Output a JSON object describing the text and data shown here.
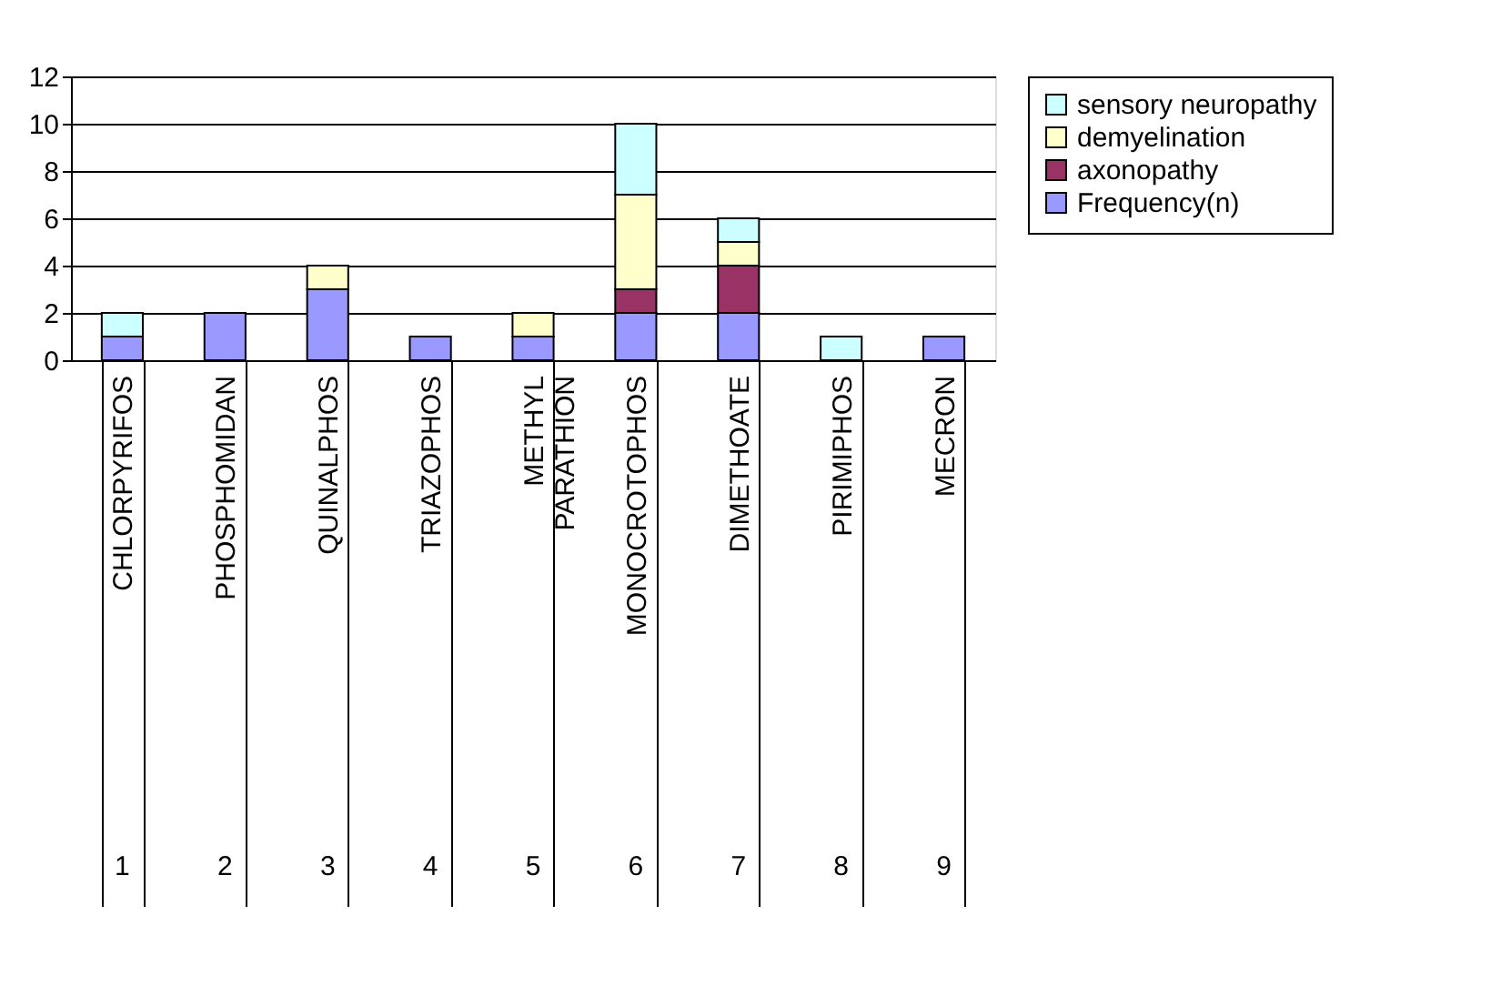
{
  "chart_data": {
    "type": "bar",
    "stacked": true,
    "categories": [
      "CHLORPYRIFOS",
      "PHOSPHOMIDAN",
      "QUINALPHOS",
      "TRIAZOPHOS",
      "METHYL PARATHION",
      "MONOCROTOPHOS",
      "DIMETHOATE",
      "PIRIMIPHOS",
      "MECRON"
    ],
    "series": [
      {
        "name": "Frequency(n)",
        "color": "#9999ff",
        "values": [
          1,
          2,
          3,
          1,
          1,
          2,
          2,
          null,
          1
        ]
      },
      {
        "name": "axonopathy",
        "color": "#993366",
        "values": [
          null,
          null,
          null,
          null,
          null,
          1,
          2,
          null,
          null
        ]
      },
      {
        "name": "demyelination",
        "color": "#ffffcc",
        "values": [
          null,
          null,
          1,
          null,
          1,
          4,
          1,
          null,
          null
        ]
      },
      {
        "name": "sensory neuropathy",
        "color": "#ccffff",
        "values": [
          1,
          null,
          null,
          null,
          null,
          3,
          1,
          1,
          null
        ]
      }
    ],
    "annotations": [
      "1",
      "2",
      "3",
      "4",
      "5",
      "6",
      "7",
      "8",
      "9"
    ],
    "ylim": [
      0,
      12
    ],
    "yticks": [
      0,
      2,
      4,
      6,
      8,
      10,
      12
    ],
    "grid": "y",
    "legend": "right"
  }
}
